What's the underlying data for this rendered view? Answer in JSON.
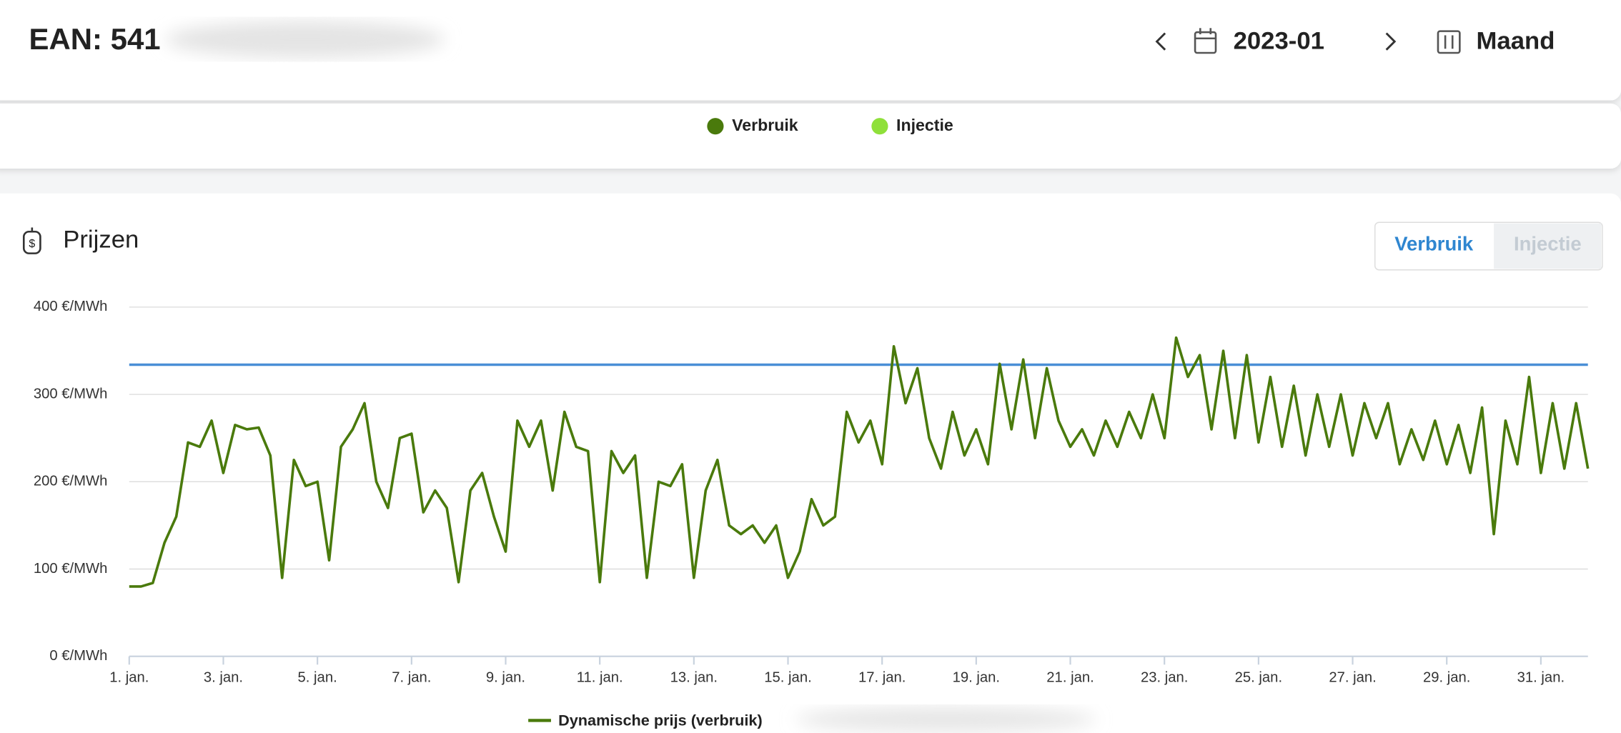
{
  "header": {
    "ean": "EAN: 541",
    "period": "2023-01",
    "view": "Maand"
  },
  "legend": [
    {
      "name": "Verbruik",
      "color": "#4a7a0c"
    },
    {
      "name": "Injectie",
      "color": "#8fe03a"
    }
  ],
  "panel": {
    "title": "Prijzen",
    "tabs": [
      "Verbruik",
      "Injectie"
    ]
  },
  "chart_data": {
    "type": "line",
    "x": [
      1,
      1.25,
      1.5,
      1.75,
      2,
      2.25,
      2.5,
      2.75,
      3,
      3.25,
      3.5,
      3.75,
      4,
      4.25,
      4.5,
      4.75,
      5,
      5.25,
      5.5,
      5.75,
      6,
      6.25,
      6.5,
      6.75,
      7,
      7.25,
      7.5,
      7.75,
      8,
      8.25,
      8.5,
      8.75,
      9,
      9.25,
      9.5,
      9.75,
      10,
      10.25,
      10.5,
      10.75,
      11,
      11.25,
      11.5,
      11.75,
      12,
      12.25,
      12.5,
      12.75,
      13,
      13.25,
      13.5,
      13.75,
      14,
      14.25,
      14.5,
      14.75,
      15,
      15.25,
      15.5,
      15.75,
      16,
      16.25,
      16.5,
      16.75,
      17,
      17.25,
      17.5,
      17.75,
      18,
      18.25,
      18.5,
      18.75,
      19,
      19.25,
      19.5,
      19.75,
      20,
      20.25,
      20.5,
      20.75,
      21,
      21.25,
      21.5,
      21.75,
      22,
      22.25,
      22.5,
      22.75,
      23,
      23.25,
      23.5,
      23.75,
      24,
      24.25,
      24.5,
      24.75,
      25,
      25.25,
      25.5,
      25.75,
      26,
      26.25,
      26.5,
      26.75,
      27,
      27.25,
      27.5,
      27.75,
      28,
      28.25,
      28.5,
      28.75,
      29,
      29.25,
      29.5,
      29.75,
      30,
      30.25,
      30.5,
      30.75,
      31,
      31.25,
      31.5,
      31.75,
      32
    ],
    "xlim": [
      1,
      32
    ],
    "xticks": [
      {
        "value": 1,
        "label": "1. jan."
      },
      {
        "value": 3,
        "label": "3. jan."
      },
      {
        "value": 5,
        "label": "5. jan."
      },
      {
        "value": 7,
        "label": "7. jan."
      },
      {
        "value": 9,
        "label": "9. jan."
      },
      {
        "value": 11,
        "label": "11. jan."
      },
      {
        "value": 13,
        "label": "13. jan."
      },
      {
        "value": 15,
        "label": "15. jan."
      },
      {
        "value": 17,
        "label": "17. jan."
      },
      {
        "value": 19,
        "label": "19. jan."
      },
      {
        "value": 21,
        "label": "21. jan."
      },
      {
        "value": 23,
        "label": "23. jan."
      },
      {
        "value": 25,
        "label": "25. jan."
      },
      {
        "value": 27,
        "label": "27. jan."
      },
      {
        "value": 29,
        "label": "29. jan."
      },
      {
        "value": 31,
        "label": "31. jan."
      }
    ],
    "ylim": [
      0,
      400
    ],
    "yticks": [
      {
        "value": 0,
        "label": "0 €/MWh"
      },
      {
        "value": 100,
        "label": "100 €/MWh"
      },
      {
        "value": 200,
        "label": "200 €/MWh"
      },
      {
        "value": 300,
        "label": "300 €/MWh"
      },
      {
        "value": 400,
        "label": "400 €/MWh"
      }
    ],
    "grid": true,
    "series": [
      {
        "name": "Dynamische prijs (verbruik)",
        "color": "#4a7a0c",
        "values": [
          80,
          80,
          84,
          130,
          160,
          245,
          240,
          270,
          210,
          265,
          260,
          262,
          230,
          90,
          225,
          195,
          200,
          110,
          240,
          260,
          290,
          200,
          170,
          250,
          255,
          165,
          190,
          170,
          85,
          190,
          210,
          160,
          120,
          270,
          240,
          270,
          190,
          280,
          240,
          235,
          85,
          235,
          210,
          230,
          90,
          200,
          195,
          220,
          90,
          190,
          225,
          150,
          140,
          150,
          130,
          150,
          90,
          120,
          180,
          150,
          160,
          280,
          245,
          270,
          220,
          355,
          290,
          330,
          250,
          215,
          280,
          230,
          260,
          220,
          335,
          260,
          340,
          250,
          330,
          270,
          240,
          260,
          230,
          270,
          240,
          280,
          250,
          300,
          250,
          365,
          320,
          345,
          260,
          350,
          250,
          345,
          245,
          320,
          240,
          310,
          230,
          300,
          240,
          300,
          230,
          290,
          250,
          290,
          220,
          260,
          225,
          270,
          220,
          265,
          210,
          285,
          140,
          270,
          220,
          320,
          210,
          290,
          215,
          290,
          215
        ]
      }
    ],
    "reference_line": {
      "value": 334,
      "color": "#4a8fd6"
    }
  }
}
